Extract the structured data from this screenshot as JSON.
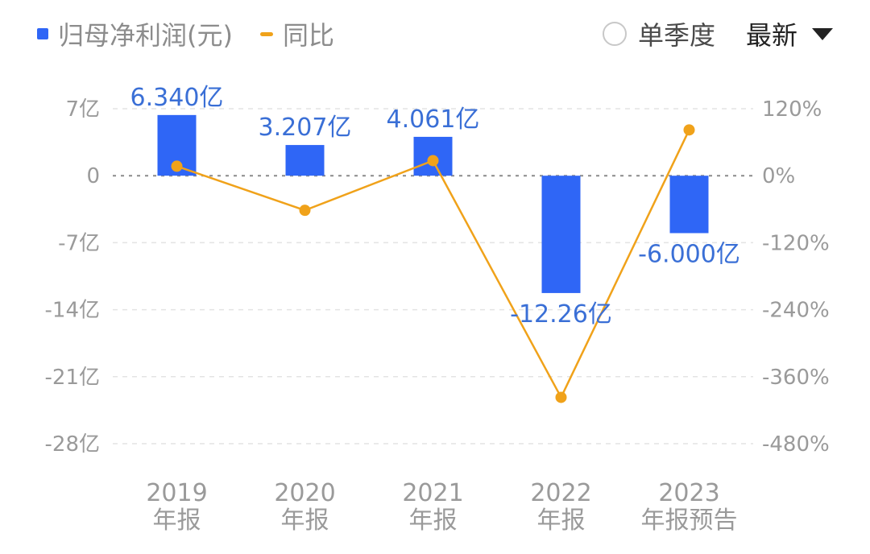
{
  "legend": {
    "bar_label": "归母净利润(元)",
    "line_label": "同比"
  },
  "controls": {
    "quarter_toggle_label": "单季度",
    "sort_label": "最新"
  },
  "colors": {
    "bar": "#2f66f6",
    "line": "#f0a21a",
    "bar_label": "#3a6fd6",
    "tick": "#9a9a9a"
  },
  "chart_data": {
    "type": "bar",
    "categories": [
      [
        "2019",
        "年报"
      ],
      [
        "2020",
        "年报"
      ],
      [
        "2021",
        "年报"
      ],
      [
        "2022",
        "年报"
      ],
      [
        "2023",
        "年报预告"
      ]
    ],
    "series": [
      {
        "name": "归母净利润(元)",
        "type": "bar",
        "axis": "left",
        "values": [
          6.34,
          3.207,
          4.061,
          -12.26,
          -6.0
        ],
        "labels": [
          "6.340亿",
          "3.207亿",
          "4.061亿",
          "-12.26亿",
          "-6.000亿"
        ]
      },
      {
        "name": "同比",
        "type": "line",
        "axis": "right",
        "values": [
          17,
          -62,
          27,
          -397,
          82
        ]
      }
    ],
    "left_axis": {
      "ticks": [
        7,
        0,
        -7,
        -14,
        -21,
        -28
      ],
      "tick_labels": [
        "7亿",
        "0",
        "-7亿",
        "-14亿",
        "-21亿",
        "-28亿"
      ],
      "ylim": [
        -28,
        7
      ]
    },
    "right_axis": {
      "ticks": [
        120,
        0,
        -120,
        -240,
        -360,
        -480
      ],
      "tick_labels": [
        "120%",
        "0%",
        "-120%",
        "-240%",
        "-360%",
        "-480%"
      ],
      "ylim": [
        -480,
        120
      ]
    },
    "grid": true
  }
}
